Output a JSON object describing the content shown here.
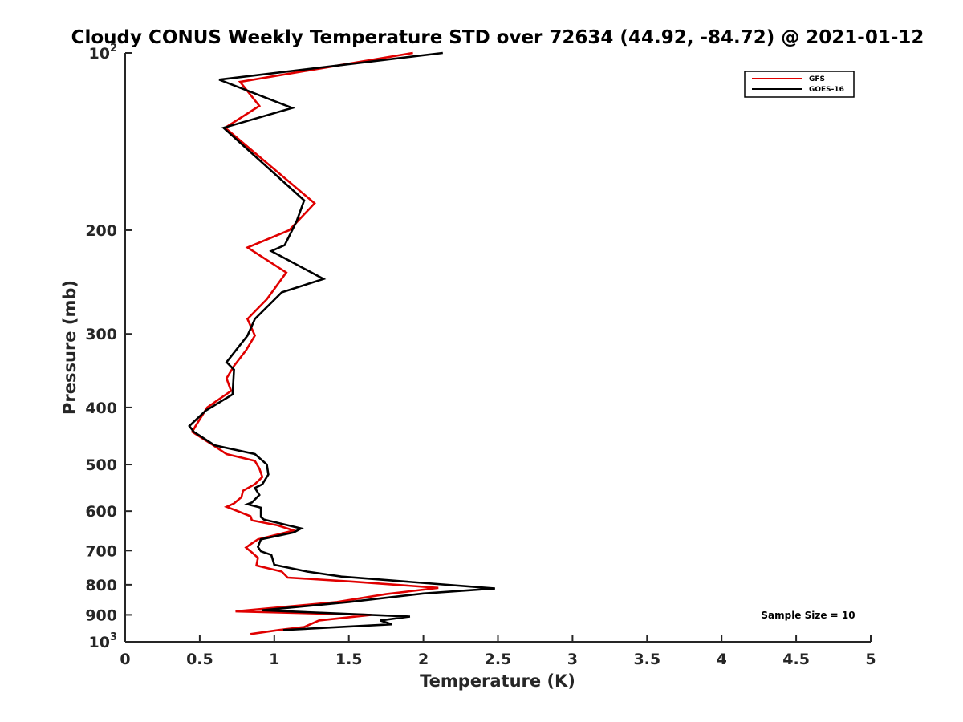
{
  "chart_data": {
    "type": "line",
    "title": "Cloudy CONUS Weekly Temperature STD over 72634 (44.92, -84.72) @ 2021-01-12",
    "xlabel": "Temperature (K)",
    "ylabel": "Pressure (mb)",
    "xlim": [
      0,
      5
    ],
    "ylim": [
      100,
      1000
    ],
    "y_scale": "log",
    "y_reversed": true,
    "x_ticks": [
      0,
      0.5,
      1,
      1.5,
      2,
      2.5,
      3,
      3.5,
      4,
      4.5,
      5
    ],
    "x_tick_labels": [
      "0",
      "0.5",
      "1",
      "1.5",
      "2",
      "2.5",
      "3",
      "3.5",
      "4",
      "4.5",
      "5"
    ],
    "y_ticks": [
      100,
      200,
      300,
      400,
      500,
      600,
      700,
      800,
      900,
      1000
    ],
    "y_tick_labels": [
      {
        "base": "10",
        "exp": "2"
      },
      {
        "base": "200",
        "exp": ""
      },
      {
        "base": "300",
        "exp": ""
      },
      {
        "base": "400",
        "exp": ""
      },
      {
        "base": "500",
        "exp": ""
      },
      {
        "base": "600",
        "exp": ""
      },
      {
        "base": "700",
        "exp": ""
      },
      {
        "base": "800",
        "exp": ""
      },
      {
        "base": "900",
        "exp": ""
      },
      {
        "base": "10",
        "exp": "3"
      }
    ],
    "grid": false,
    "legend_position": "top-right",
    "annotation": "Sample Size = 10",
    "series": [
      {
        "name": "GFS",
        "color": "#e00000",
        "points": [
          [
            1.93,
            100
          ],
          [
            0.77,
            112
          ],
          [
            0.9,
            123
          ],
          [
            0.67,
            134
          ],
          [
            1.27,
            180
          ],
          [
            1.1,
            200
          ],
          [
            0.82,
            214
          ],
          [
            1.08,
            236
          ],
          [
            0.95,
            262
          ],
          [
            0.82,
            283
          ],
          [
            0.87,
            302
          ],
          [
            0.81,
            320
          ],
          [
            0.73,
            340
          ],
          [
            0.68,
            357
          ],
          [
            0.71,
            375
          ],
          [
            0.55,
            400
          ],
          [
            0.47,
            431
          ],
          [
            0.45,
            440
          ],
          [
            0.58,
            462
          ],
          [
            0.68,
            480
          ],
          [
            0.87,
            493
          ],
          [
            0.9,
            508
          ],
          [
            0.92,
            525
          ],
          [
            0.87,
            540
          ],
          [
            0.79,
            554
          ],
          [
            0.78,
            568
          ],
          [
            0.73,
            582
          ],
          [
            0.68,
            590
          ],
          [
            0.74,
            598
          ],
          [
            0.84,
            612
          ],
          [
            0.85,
            622
          ],
          [
            1.02,
            634
          ],
          [
            1.13,
            647
          ],
          [
            0.89,
            670
          ],
          [
            0.84,
            683
          ],
          [
            0.81,
            692
          ],
          [
            0.85,
            705
          ],
          [
            0.89,
            720
          ],
          [
            0.88,
            742
          ],
          [
            1.05,
            760
          ],
          [
            1.09,
            778
          ],
          [
            1.52,
            790
          ],
          [
            2.1,
            810
          ],
          [
            1.75,
            830
          ],
          [
            1.42,
            856
          ],
          [
            0.74,
            888
          ],
          [
            1.65,
            900
          ],
          [
            1.3,
            920
          ],
          [
            1.2,
            944
          ],
          [
            1.03,
            955
          ],
          [
            0.84,
            970
          ]
        ]
      },
      {
        "name": "GOES-16",
        "color": "#000000",
        "points": [
          [
            2.13,
            100
          ],
          [
            0.63,
            111
          ],
          [
            1.12,
            124
          ],
          [
            0.66,
            134
          ],
          [
            1.2,
            178
          ],
          [
            1.15,
            193
          ],
          [
            1.07,
            212
          ],
          [
            0.98,
            217
          ],
          [
            1.33,
            242
          ],
          [
            1.05,
            255
          ],
          [
            0.87,
            283
          ],
          [
            0.82,
            302
          ],
          [
            0.68,
            335
          ],
          [
            0.73,
            345
          ],
          [
            0.72,
            380
          ],
          [
            0.54,
            405
          ],
          [
            0.43,
            430
          ],
          [
            0.46,
            440
          ],
          [
            0.6,
            464
          ],
          [
            0.87,
            480
          ],
          [
            0.95,
            500
          ],
          [
            0.96,
            520
          ],
          [
            0.92,
            540
          ],
          [
            0.87,
            548
          ],
          [
            0.9,
            563
          ],
          [
            0.85,
            580
          ],
          [
            0.82,
            584
          ],
          [
            0.91,
            592
          ],
          [
            0.91,
            614
          ],
          [
            0.93,
            620
          ],
          [
            1.18,
            642
          ],
          [
            1.13,
            652
          ],
          [
            0.91,
            670
          ],
          [
            0.89,
            690
          ],
          [
            0.91,
            702
          ],
          [
            0.98,
            712
          ],
          [
            1.0,
            740
          ],
          [
            1.22,
            760
          ],
          [
            1.45,
            775
          ],
          [
            2.48,
            812
          ],
          [
            2.0,
            828
          ],
          [
            1.5,
            856
          ],
          [
            0.92,
            884
          ],
          [
            1.91,
            906
          ],
          [
            1.71,
            920
          ],
          [
            1.79,
            934
          ],
          [
            1.06,
            955
          ]
        ]
      }
    ]
  }
}
